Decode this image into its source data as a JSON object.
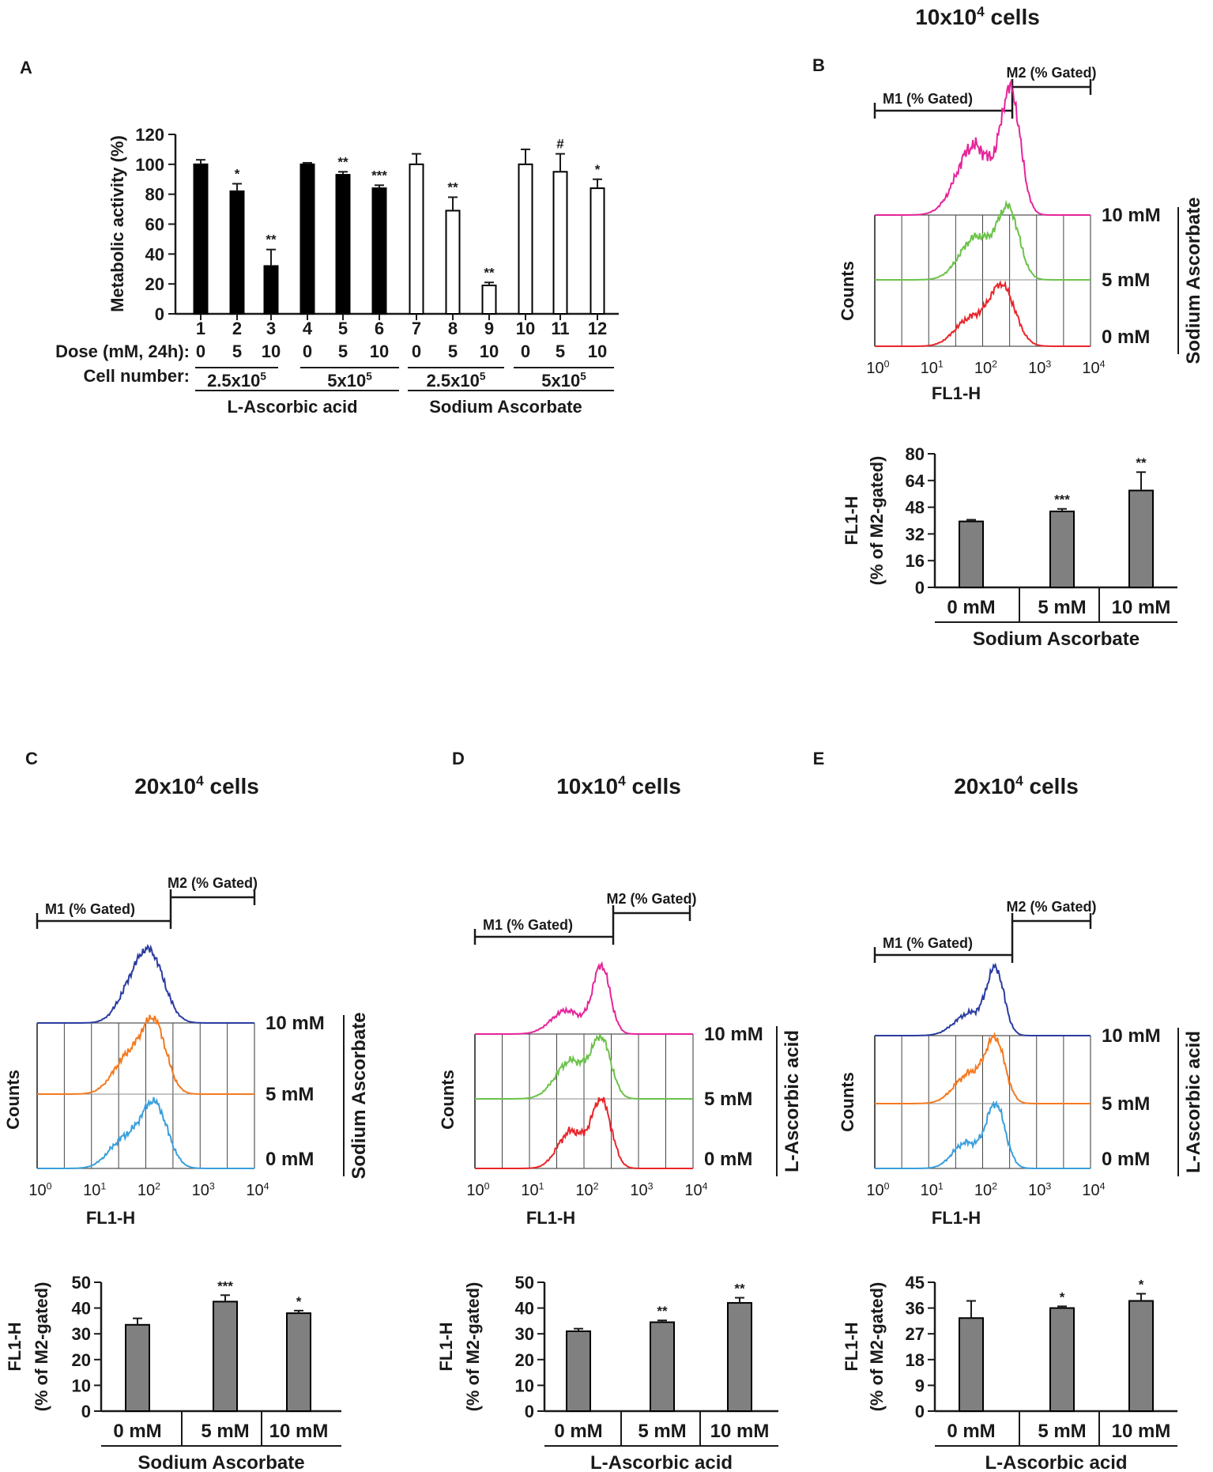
{
  "panels": {
    "A": {
      "letter": "A",
      "chart_data": {
        "type": "bar",
        "title": "",
        "ylabel": "Metabolic activity (%)",
        "ylim": [
          0,
          120
        ],
        "yticks": [
          "0",
          "20",
          "40",
          "60",
          "80",
          "100",
          "120"
        ],
        "categories": [
          "1",
          "2",
          "3",
          "4",
          "5",
          "6",
          "7",
          "8",
          "9",
          "10",
          "11",
          "12"
        ],
        "values": [
          100,
          82,
          32,
          100,
          93,
          84,
          100,
          69,
          19,
          100,
          95,
          84
        ],
        "errors": [
          3,
          5,
          11,
          1,
          2,
          2,
          7,
          9,
          2,
          10,
          12,
          6
        ],
        "fills": [
          "black",
          "black",
          "black",
          "black",
          "black",
          "black",
          "white",
          "white",
          "white",
          "white",
          "white",
          "white"
        ],
        "sig": [
          "",
          "*",
          "**",
          "",
          "**",
          "***",
          "",
          "**",
          "**",
          "",
          "#",
          "*"
        ],
        "dose_label": "Dose (mM, 24h):",
        "doses": [
          "0",
          "5",
          "10",
          "0",
          "5",
          "10",
          "0",
          "5",
          "10",
          "0",
          "5",
          "10"
        ],
        "cell_label": "Cell number:",
        "cell_groups": [
          {
            "base": "2.5x10",
            "exp": "5"
          },
          {
            "base": "5x10",
            "exp": "5"
          },
          {
            "base": "2.5x10",
            "exp": "5"
          },
          {
            "base": "5x10",
            "exp": "5"
          }
        ],
        "treatments": [
          "L-Ascorbic acid",
          "Sodium Ascorbate"
        ]
      }
    },
    "B": {
      "letter": "B",
      "title": {
        "prefix": "10x10",
        "exp": "4",
        "suffix": " cells"
      },
      "m1": "M1 (% Gated)",
      "m2": "M2 (% Gated)",
      "histogram": {
        "xlabel": "FL1-H",
        "ylabel": "Counts",
        "xticks": [
          {
            "base": "10",
            "exp": "0"
          },
          {
            "base": "10",
            "exp": "1"
          },
          {
            "base": "10",
            "exp": "2"
          },
          {
            "base": "10",
            "exp": "3"
          },
          {
            "base": "10",
            "exp": "4"
          }
        ],
        "doses": [
          "10 mM",
          "5 mM",
          "0 mM"
        ],
        "colors": [
          "#e6259b",
          "#6cc24a",
          "#e8262b"
        ],
        "treatment": "Sodium Ascorbate"
      },
      "chart_data": {
        "type": "bar",
        "ylabel": "FL1-H",
        "ylabel2": "(% of M2-gated)",
        "ylim": [
          0,
          80
        ],
        "yticks": [
          "0",
          "16",
          "32",
          "48",
          "64",
          "80"
        ],
        "categories": [
          "0 mM",
          "5 mM",
          "10 mM"
        ],
        "values": [
          39.5,
          45.5,
          58
        ],
        "errors": [
          1,
          1.5,
          11
        ],
        "sig": [
          "",
          "***",
          "**"
        ],
        "group_label": "Sodium Ascorbate"
      }
    },
    "C": {
      "letter": "C",
      "title": {
        "prefix": "20x10",
        "exp": "4",
        "suffix": " cells"
      },
      "m1": "M1 (% Gated)",
      "m2": "M2 (% Gated)",
      "histogram": {
        "xlabel": "FL1-H",
        "ylabel": "Counts",
        "xticks": [
          {
            "base": "10",
            "exp": "0"
          },
          {
            "base": "10",
            "exp": "1"
          },
          {
            "base": "10",
            "exp": "2"
          },
          {
            "base": "10",
            "exp": "3"
          },
          {
            "base": "10",
            "exp": "4"
          }
        ],
        "doses": [
          "10 mM",
          "5 mM",
          "0 mM"
        ],
        "colors": [
          "#2b3ca0",
          "#f47a20",
          "#3b9fdc"
        ],
        "treatment": "Sodium Ascorbate"
      },
      "chart_data": {
        "type": "bar",
        "ylabel": "FL1-H",
        "ylabel2": "(% of M2-gated)",
        "ylim": [
          0,
          50
        ],
        "yticks": [
          "0",
          "10",
          "20",
          "30",
          "40",
          "50"
        ],
        "categories": [
          "0 mM",
          "5 mM",
          "10 mM"
        ],
        "values": [
          33.5,
          42.5,
          38
        ],
        "errors": [
          2.5,
          2.5,
          1
        ],
        "sig": [
          "",
          "***",
          "*"
        ],
        "group_label": "Sodium Ascorbate"
      }
    },
    "D": {
      "letter": "D",
      "title": {
        "prefix": "10x10",
        "exp": "4",
        "suffix": " cells"
      },
      "m1": "M1 (% Gated)",
      "m2": "M2 (% Gated)",
      "histogram": {
        "xlabel": "FL1-H",
        "ylabel": "Counts",
        "xticks": [
          {
            "base": "10",
            "exp": "0"
          },
          {
            "base": "10",
            "exp": "1"
          },
          {
            "base": "10",
            "exp": "2"
          },
          {
            "base": "10",
            "exp": "3"
          },
          {
            "base": "10",
            "exp": "4"
          }
        ],
        "doses": [
          "10 mM",
          "5 mM",
          "0 mM"
        ],
        "colors": [
          "#e6259b",
          "#6cc24a",
          "#e8262b"
        ],
        "treatment": "L-Ascorbic acid"
      },
      "chart_data": {
        "type": "bar",
        "ylabel": "FL1-H",
        "ylabel2": "(% of M2-gated)",
        "ylim": [
          0,
          50
        ],
        "yticks": [
          "0",
          "10",
          "20",
          "30",
          "40",
          "50"
        ],
        "categories": [
          "0 mM",
          "5 mM",
          "10 mM"
        ],
        "values": [
          31,
          34.5,
          42
        ],
        "errors": [
          1,
          0.7,
          2
        ],
        "sig": [
          "",
          "**",
          "**"
        ],
        "group_label": "L-Ascorbic acid"
      }
    },
    "E": {
      "letter": "E",
      "title": {
        "prefix": "20x10",
        "exp": "4",
        "suffix": " cells"
      },
      "m1": "M1 (% Gated)",
      "m2": "M2 (% Gated)",
      "histogram": {
        "xlabel": "FL1-H",
        "ylabel": "Counts",
        "xticks": [
          {
            "base": "10",
            "exp": "0"
          },
          {
            "base": "10",
            "exp": "1"
          },
          {
            "base": "10",
            "exp": "2"
          },
          {
            "base": "10",
            "exp": "3"
          },
          {
            "base": "10",
            "exp": "4"
          }
        ],
        "doses": [
          "10 mM",
          "5 mM",
          "0 mM"
        ],
        "colors": [
          "#2b3ca0",
          "#f47a20",
          "#3b9fdc"
        ],
        "treatment": "L-Ascorbic acid"
      },
      "chart_data": {
        "type": "bar",
        "ylabel": "FL1-H",
        "ylabel2": "(% of M2-gated)",
        "ylim": [
          0,
          45
        ],
        "yticks": [
          "0",
          "9",
          "18",
          "27",
          "36",
          "45"
        ],
        "categories": [
          "0 mM",
          "5 mM",
          "10 mM"
        ],
        "values": [
          32.5,
          36,
          38.5
        ],
        "errors": [
          6,
          0.6,
          2.5
        ],
        "sig": [
          "",
          "*",
          "*"
        ],
        "group_label": "L-Ascorbic acid"
      }
    }
  }
}
